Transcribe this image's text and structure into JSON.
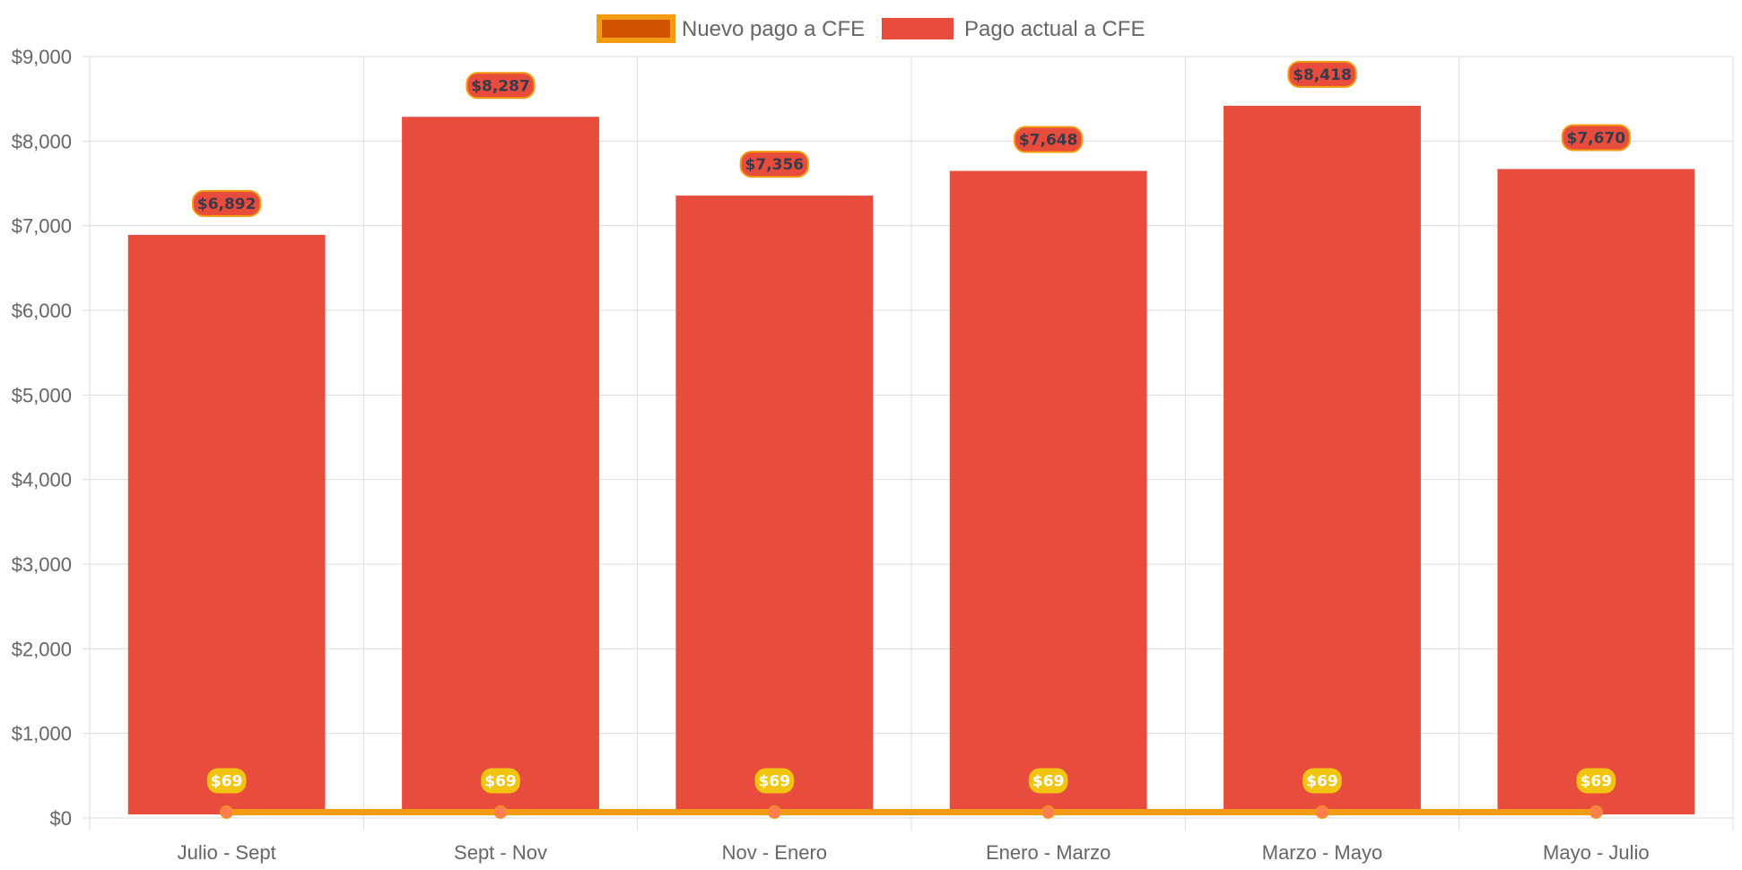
{
  "colors": {
    "bar_fill": "#e74c3c",
    "line_stroke": "#f39c12",
    "line_legend_fill": "#d35400",
    "line_label_bg": "#f1c40f",
    "point_fill": "#ff7f50",
    "grid": "#dddddd"
  },
  "chart_data": {
    "type": "bar",
    "title": "",
    "xlabel": "",
    "ylabel": "",
    "categories": [
      "Julio - Sept",
      "Sept - Nov",
      "Nov - Enero",
      "Enero - Marzo",
      "Marzo - Mayo",
      "Mayo - Julio"
    ],
    "ylim": [
      0,
      9000
    ],
    "yticks": [
      "$0",
      "$1,000",
      "$2,000",
      "$3,000",
      "$4,000",
      "$5,000",
      "$6,000",
      "$7,000",
      "$8,000",
      "$9,000"
    ],
    "grid": true,
    "legend_position": "top-center",
    "series": [
      {
        "name": "Nuevo pago a CFE",
        "type": "line",
        "values": [
          69,
          69,
          69,
          69,
          69,
          69
        ],
        "data_labels": [
          "$69",
          "$69",
          "$69",
          "$69",
          "$69",
          "$69"
        ]
      },
      {
        "name": "Pago actual a CFE",
        "type": "bar",
        "values": [
          6892,
          8287,
          7356,
          7648,
          8418,
          7670
        ],
        "data_labels": [
          "$6,892",
          "$8,287",
          "$7,356",
          "$7,648",
          "$8,418",
          "$7,670"
        ]
      }
    ]
  }
}
